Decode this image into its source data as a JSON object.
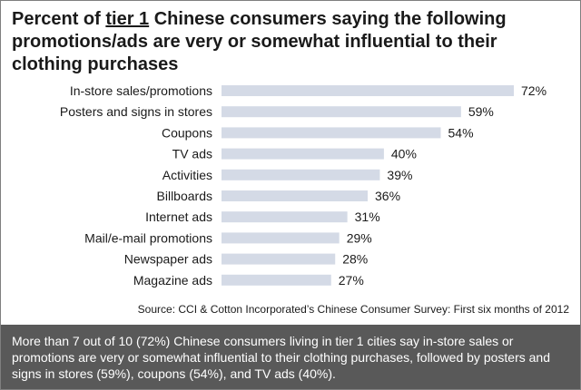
{
  "title": {
    "before": "Percent of ",
    "underlined": "tier 1",
    "after": " Chinese consumers saying the following promotions/ads are very or somewhat influential to their clothing purchases"
  },
  "source": "Source: CCI & Cotton Incorporated’s Chinese Consumer Survey: First six months of 2012",
  "footer_text": "More than 7 out of 10 (72%) Chinese consumers living in tier 1 cities say in-store sales or promotions are very or somewhat influential to their clothing purchases, followed by posters and signs in stores (59%), coupons (54%), and TV ads (40%).",
  "colors": {
    "bar": "#d4dae6",
    "footer_bg": "#595959"
  },
  "chart_data": {
    "type": "bar",
    "orientation": "horizontal",
    "categories": [
      "In-store sales/promotions",
      "Posters and signs in stores",
      "Coupons",
      "TV ads",
      "Activities",
      "Billboards",
      "Internet ads",
      "Mail/e-mail promotions",
      "Newspaper ads",
      "Magazine ads"
    ],
    "values": [
      72,
      59,
      54,
      40,
      39,
      36,
      31,
      29,
      28,
      27
    ],
    "value_labels": [
      "72%",
      "59%",
      "54%",
      "40%",
      "39%",
      "36%",
      "31%",
      "29%",
      "28%",
      "27%"
    ],
    "xlim": [
      0,
      72
    ],
    "grid": false,
    "legend": "none"
  }
}
